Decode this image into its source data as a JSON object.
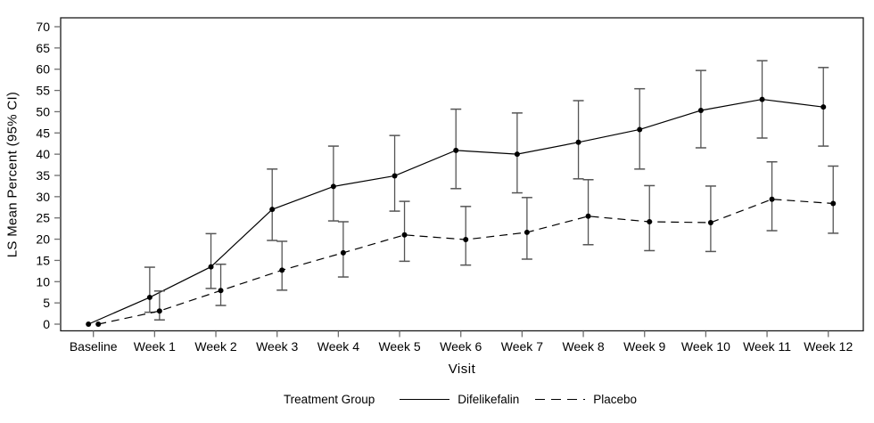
{
  "chart_data": {
    "type": "line",
    "title": "",
    "xlabel": "Visit",
    "ylabel": "LS Mean Percent (95% CI)",
    "legend_title": "Treatment Group",
    "legend_position": "bottom",
    "grid": false,
    "ylim": [
      0,
      70
    ],
    "ytick_step": 5,
    "categories": [
      "Baseline",
      "Week 1",
      "Week 2",
      "Week 3",
      "Week 4",
      "Week 5",
      "Week 6",
      "Week 7",
      "Week 8",
      "Week 9",
      "Week 10",
      "Week 11",
      "Week 12"
    ],
    "series": [
      {
        "name": "Difelikefalin",
        "line_style": "solid",
        "marker": "filled-circle",
        "color": "#000000",
        "values": [
          0,
          6.3,
          13.5,
          27.0,
          32.4,
          34.9,
          40.9,
          40.0,
          42.8,
          45.8,
          50.3,
          52.9,
          51.1
        ],
        "ci_lower": [
          0,
          2.8,
          8.4,
          19.7,
          24.3,
          26.6,
          31.9,
          30.9,
          34.2,
          36.5,
          41.5,
          43.8,
          41.9
        ],
        "ci_upper": [
          0,
          13.4,
          21.3,
          36.5,
          41.9,
          44.4,
          50.6,
          49.7,
          52.6,
          55.4,
          59.7,
          62.0,
          60.4
        ]
      },
      {
        "name": "Placebo",
        "line_style": "dashed",
        "marker": "filled-circle",
        "color": "#000000",
        "values": [
          0,
          3.1,
          7.9,
          12.7,
          16.8,
          21.0,
          19.9,
          21.6,
          25.4,
          24.1,
          23.9,
          29.4,
          28.4
        ],
        "ci_lower": [
          0,
          1.0,
          4.4,
          8.0,
          11.1,
          14.8,
          13.9,
          15.3,
          18.7,
          17.3,
          17.1,
          22.0,
          21.4
        ],
        "ci_upper": [
          0,
          7.8,
          14.1,
          19.5,
          24.1,
          28.9,
          27.7,
          29.8,
          34.0,
          32.6,
          32.5,
          38.2,
          37.2
        ]
      }
    ]
  },
  "colors": {
    "background": "#ffffff",
    "frame": "#1a1a1a",
    "tick": "#6e6e6e",
    "text": "#000000",
    "error_bar": "#555555"
  }
}
